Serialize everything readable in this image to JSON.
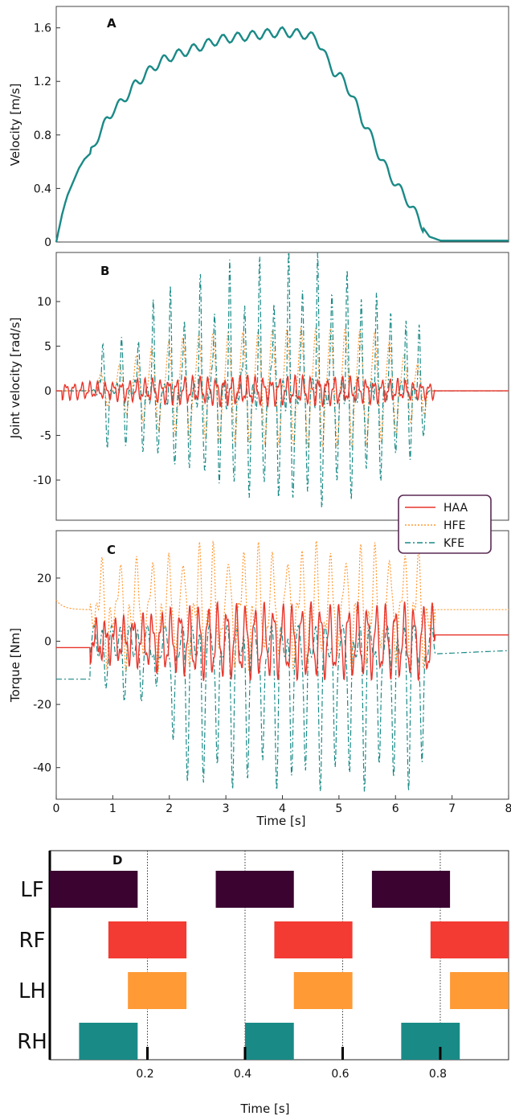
{
  "colors": {
    "teal": "#1a8a87",
    "haa": "#e8352b",
    "hfe": "#ff9a35",
    "lf": "#3a0330",
    "rf": "#f33a33",
    "lh": "#ff9a35",
    "rh": "#1a8a87",
    "legend_border": "#5a2a55"
  },
  "chart_data": [
    {
      "panel": "A",
      "type": "line",
      "ylabel": "Velocity [m/s]",
      "xlim": [
        0,
        8
      ],
      "ylim": [
        0,
        1.76
      ],
      "yticks": [
        0,
        0.4,
        0.8,
        1.2,
        1.6
      ],
      "ytick_labels": [
        "0",
        "0.4",
        "0.8",
        "1.2",
        "1.6"
      ],
      "series": [
        {
          "color": "teal",
          "x": [
            0,
            0.05,
            0.1,
            0.15,
            0.2,
            0.3,
            0.4,
            0.5,
            0.6,
            0.7,
            0.8,
            0.9,
            1.0,
            1.1,
            1.2,
            1.3,
            1.4,
            1.5,
            1.6,
            1.7,
            1.8,
            1.9,
            2.0,
            2.2,
            2.4,
            2.6,
            2.8,
            3.0,
            3.2,
            3.4,
            3.6,
            3.8,
            4.0,
            4.2,
            4.4,
            4.6,
            4.7,
            4.8,
            4.9,
            5.0,
            5.1,
            5.2,
            5.3,
            5.4,
            5.5,
            5.6,
            5.7,
            5.8,
            5.9,
            6.0,
            6.1,
            6.2,
            6.3,
            6.4,
            6.5,
            6.6,
            6.8,
            7.0,
            7.5,
            8.0
          ],
          "y": [
            0,
            0.1,
            0.2,
            0.28,
            0.35,
            0.45,
            0.55,
            0.62,
            0.66,
            0.76,
            0.83,
            0.92,
            0.98,
            1.02,
            1.07,
            1.12,
            1.18,
            1.22,
            1.26,
            1.3,
            1.33,
            1.36,
            1.38,
            1.41,
            1.44,
            1.47,
            1.5,
            1.52,
            1.53,
            1.54,
            1.55,
            1.56,
            1.57,
            1.56,
            1.55,
            1.52,
            1.45,
            1.35,
            1.28,
            1.24,
            1.2,
            1.12,
            1.03,
            0.92,
            0.85,
            0.76,
            0.66,
            0.58,
            0.5,
            0.44,
            0.38,
            0.32,
            0.25,
            0.18,
            0.1,
            0.04,
            0.01,
            0.01,
            0.01,
            0.01
          ]
        }
      ]
    },
    {
      "panel": "B",
      "type": "line",
      "ylabel": "Joint velocity [rad/s]",
      "xlim": [
        0,
        8
      ],
      "ylim": [
        -14.5,
        15.5
      ],
      "yticks": [
        -10,
        -5,
        0,
        5,
        10
      ],
      "ytick_labels": [
        "-10",
        "-5",
        "0",
        "5",
        "10"
      ],
      "peak_times": [
        0.82,
        1.15,
        1.45,
        1.72,
        2.02,
        2.27,
        2.55,
        2.8,
        3.07,
        3.33,
        3.6,
        3.85,
        4.11,
        4.36,
        4.62,
        4.88,
        5.14,
        5.4,
        5.66,
        5.92,
        6.18,
        6.42
      ],
      "series": [
        {
          "name": "HAA",
          "color": "haa",
          "style": "solid",
          "amplitudes": [
            1.2,
            1.4,
            1.6,
            1.7,
            1.8,
            1.9,
            1.9,
            2.0,
            2.0,
            2.0,
            2.0,
            2.0,
            2.0,
            2.0,
            2.0,
            2.0,
            1.9,
            1.8,
            1.7,
            1.6,
            1.4,
            1.2
          ]
        },
        {
          "name": "HFE",
          "color": "hfe",
          "style": "dotted",
          "amplitudes": [
            2.0,
            3.0,
            4.0,
            5.0,
            5.5,
            6.0,
            6.2,
            6.4,
            6.5,
            6.6,
            6.7,
            6.8,
            6.9,
            7.0,
            7.0,
            7.0,
            7.0,
            6.8,
            6.5,
            5.5,
            4.0,
            3.0
          ]
        },
        {
          "name": "KFE",
          "color": "teal",
          "style": "dashdot",
          "amplitudes": [
            6.7,
            6.0,
            7.0,
            9.0,
            9.5,
            10.0,
            11.0,
            11.5,
            12.0,
            12.5,
            12.8,
            13.0,
            13.2,
            13.5,
            13.2,
            12.5,
            12.0,
            11.0,
            10.0,
            9.0,
            7.5,
            6.0
          ]
        }
      ],
      "legend": [
        "HAA",
        "HFE",
        "KFE"
      ]
    },
    {
      "panel": "C",
      "type": "line",
      "ylabel": "Torque [Nm]",
      "xlabel": "Time [s]",
      "xlim": [
        0,
        8
      ],
      "ylim": [
        -50,
        35
      ],
      "xticks": [
        0,
        1,
        2,
        3,
        4,
        5,
        6,
        7,
        8
      ],
      "xtick_labels": [
        "0",
        "1",
        "2",
        "3",
        "4",
        "5",
        "6",
        "7",
        "8"
      ],
      "yticks": [
        -40,
        -20,
        0,
        20
      ],
      "ytick_labels": [
        "-40",
        "-20",
        "0",
        "20"
      ],
      "peak_times": [
        0.82,
        1.15,
        1.45,
        1.72,
        2.02,
        2.27,
        2.55,
        2.8,
        3.07,
        3.33,
        3.6,
        3.85,
        4.11,
        4.36,
        4.62,
        4.88,
        5.14,
        5.4,
        5.66,
        5.92,
        6.18,
        6.42
      ],
      "series": [
        {
          "name": "HAA",
          "color": "haa",
          "style": "solid",
          "baseline_start": -2,
          "baseline_end": 2,
          "amplitude": 12
        },
        {
          "name": "HFE",
          "color": "hfe",
          "style": "dotted",
          "baseline_start": 10,
          "baseline_end": 10,
          "amplitude": 15,
          "max": 30
        },
        {
          "name": "KFE",
          "color": "teal",
          "style": "dashdot",
          "baseline_start": -12,
          "baseline_end": -3,
          "min": -41
        }
      ]
    },
    {
      "panel": "D",
      "type": "gantt",
      "xlabel": "Time [s]",
      "xlim": [
        0.0,
        0.94
      ],
      "xticks": [
        0.2,
        0.4,
        0.6,
        0.8
      ],
      "xtick_labels": [
        "0.2",
        "0.4",
        "0.6",
        "0.8"
      ],
      "rows": [
        {
          "label": "LF",
          "color": "lf",
          "intervals": [
            [
              0.0,
              0.18
            ],
            [
              0.34,
              0.5
            ],
            [
              0.66,
              0.82
            ]
          ]
        },
        {
          "label": "RF",
          "color": "rf",
          "intervals": [
            [
              0.12,
              0.28
            ],
            [
              0.46,
              0.62
            ],
            [
              0.78,
              0.94
            ]
          ]
        },
        {
          "label": "LH",
          "color": "lh",
          "intervals": [
            [
              0.16,
              0.28
            ],
            [
              0.5,
              0.62
            ],
            [
              0.82,
              0.94
            ]
          ]
        },
        {
          "label": "RH",
          "color": "rh",
          "intervals": [
            [
              0.06,
              0.18
            ],
            [
              0.4,
              0.5
            ],
            [
              0.72,
              0.84
            ]
          ]
        }
      ]
    }
  ]
}
